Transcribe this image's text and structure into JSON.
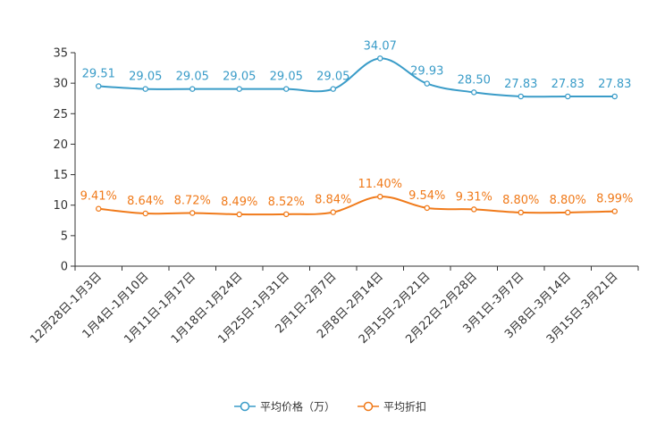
{
  "chart_data": {
    "type": "line",
    "title": "",
    "xlabel": "",
    "ylabel": "",
    "ylim": [
      0,
      35
    ],
    "yticks": [
      0,
      5,
      10,
      15,
      20,
      25,
      30,
      35
    ],
    "grid": false,
    "legend_position": "bottom",
    "categories": [
      "12月28日-1月3日",
      "1月4日-1月10日",
      "1月11日-1月17日",
      "1月18日-1月24日",
      "1月25日-1月31日",
      "2月1日-2月7日",
      "2月8日-2月14日",
      "2月15日-2月21日",
      "2月22日-2月28日",
      "3月1日-3月7日",
      "3月8日-3月14日",
      "3月15日-3月21日"
    ],
    "series": [
      {
        "name": "平均价格（万）",
        "color": "#3a9cc8",
        "values": [
          29.51,
          29.05,
          29.05,
          29.05,
          29.05,
          29.05,
          34.07,
          29.93,
          28.5,
          27.83,
          27.83,
          27.83
        ],
        "labels": [
          "29.51",
          "29.05",
          "29.05",
          "29.05",
          "29.05",
          "29.05",
          "34.07",
          "29.93",
          "28.50",
          "27.83",
          "27.83",
          "27.83"
        ]
      },
      {
        "name": "平均折扣",
        "color": "#f07a1a",
        "values": [
          9.41,
          8.64,
          8.72,
          8.49,
          8.52,
          8.84,
          11.4,
          9.54,
          9.31,
          8.8,
          8.8,
          8.99
        ],
        "labels": [
          "9.41%",
          "8.64%",
          "8.72%",
          "8.49%",
          "8.52%",
          "8.84%",
          "11.40%",
          "9.54%",
          "9.31%",
          "8.80%",
          "8.80%",
          "8.99%"
        ]
      }
    ]
  }
}
